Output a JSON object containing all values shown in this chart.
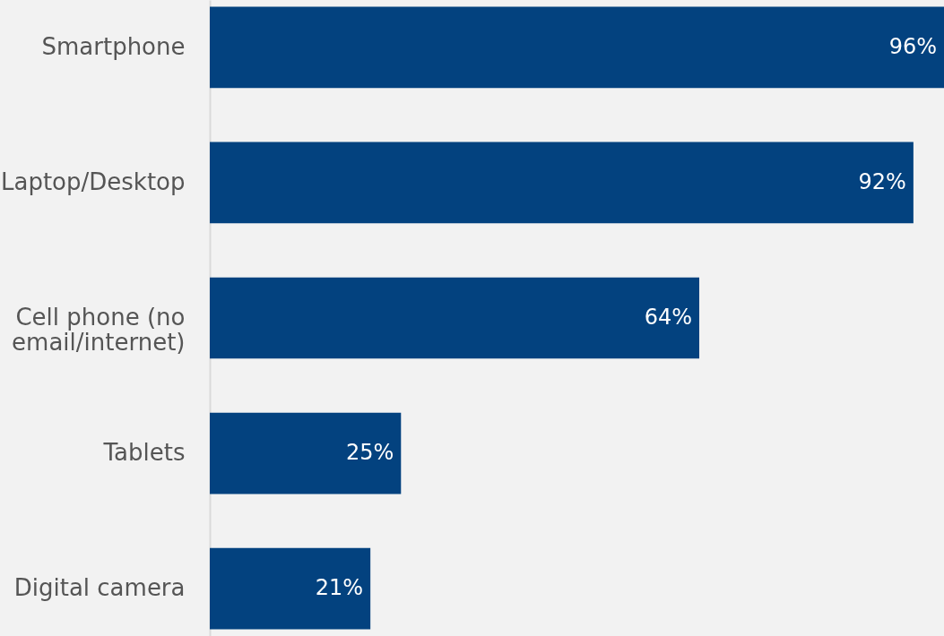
{
  "chart_data": {
    "type": "bar",
    "orientation": "horizontal",
    "categories": [
      "Smartphone",
      "Laptop/Desktop",
      "Cell phone (no email/internet)",
      "Tablets",
      "Digital camera"
    ],
    "values": [
      96,
      92,
      64,
      25,
      21
    ],
    "value_labels": [
      "96%",
      "92%",
      "64%",
      "25%",
      "21%"
    ],
    "color": "#03427f"
  }
}
